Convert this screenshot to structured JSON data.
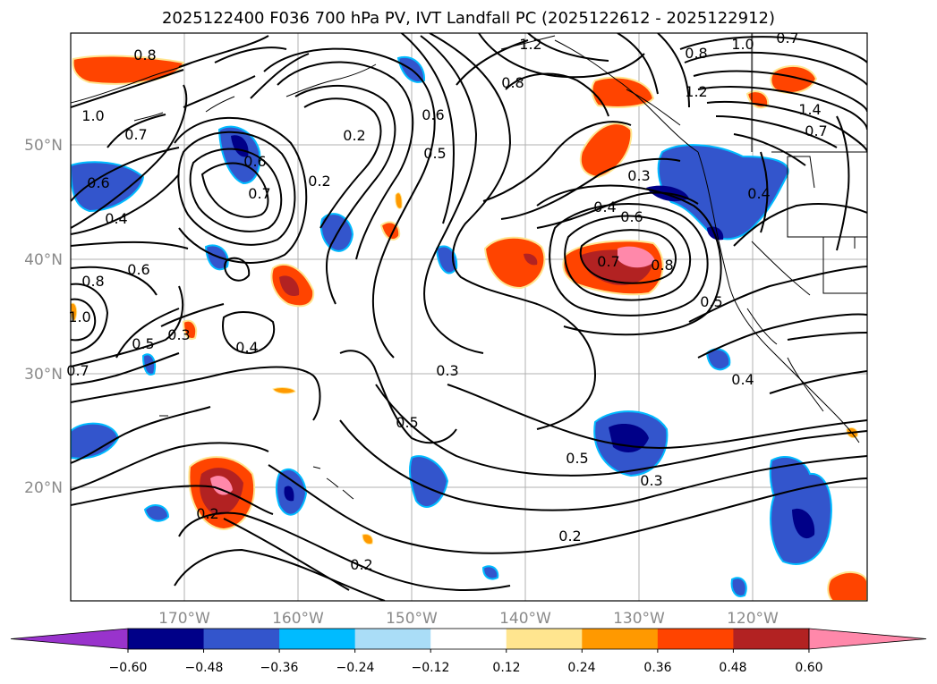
{
  "title": "2025122400 F036 700 hPa PV, IVT Landfall PC (2025122612 - 2025122912)",
  "latitude_labels": [
    "50°N",
    "40°N",
    "30°N",
    "20°N"
  ],
  "longitude_labels": [
    "170°W",
    "160°W",
    "150°W",
    "140°W",
    "130°W",
    "120°W"
  ],
  "colorbar": {
    "ticks": [
      "−0.60",
      "−0.48",
      "−0.36",
      "−0.24",
      "−0.12",
      "0.12",
      "0.24",
      "0.36",
      "0.48",
      "0.60"
    ],
    "colors": [
      "#9933cc",
      "#000088",
      "#3355cc",
      "#00bbff",
      "#aaddf7",
      "#ffffff",
      "#ffe58f",
      "#ff9900",
      "#ff4400",
      "#b22222",
      "#ff88aa"
    ]
  },
  "contour_labels": [
    "1.2",
    "0.8",
    "1.0",
    "0.7",
    "0.8",
    "1.2",
    "1.4",
    "0.7",
    "0.8",
    "1.0",
    "0.7",
    "0.6",
    "0.2",
    "0.6",
    "0.5",
    "0.6",
    "0.7",
    "0.2",
    "0.3",
    "0.4",
    "0.6",
    "0.4",
    "0.8",
    "0.7",
    "0.4",
    "0.6",
    "0.8",
    "1.0",
    "0.5",
    "0.3",
    "0.4",
    "0.7",
    "0.3",
    "0.5",
    "0.5",
    "0.5",
    "0.4",
    "0.3",
    "0.2",
    "0.2",
    "0.2"
  ]
}
